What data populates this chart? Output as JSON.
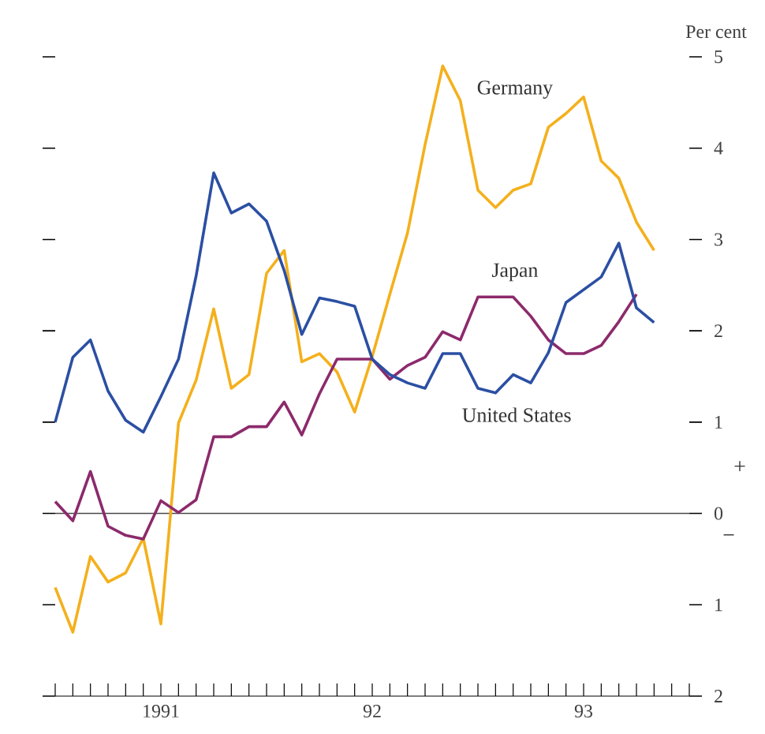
{
  "chart_data": {
    "type": "line",
    "ylabel": "Per cent",
    "x": [
      "1991-01",
      "1991-02",
      "1991-03",
      "1991-04",
      "1991-05",
      "1991-06",
      "1991-07",
      "1991-08",
      "1991-09",
      "1991-10",
      "1991-11",
      "1991-12",
      "1992-01",
      "1992-02",
      "1992-03",
      "1992-04",
      "1992-05",
      "1992-06",
      "1992-07",
      "1992-08",
      "1992-09",
      "1992-10",
      "1992-11",
      "1992-12",
      "1993-01",
      "1993-02",
      "1993-03",
      "1993-04",
      "1993-05",
      "1993-06",
      "1993-07",
      "1993-08",
      "1993-09",
      "1993-10",
      "1993-11"
    ],
    "series": [
      {
        "name": "Germany",
        "color": "#f4b01c",
        "values": [
          -0.81,
          -1.3,
          -0.47,
          -0.75,
          -0.65,
          -0.27,
          -1.21,
          0.99,
          1.46,
          2.24,
          1.37,
          1.52,
          2.63,
          2.88,
          1.66,
          1.75,
          1.55,
          1.11,
          1.72,
          2.4,
          3.07,
          4.04,
          4.9,
          4.52,
          3.54,
          3.35,
          3.54,
          3.61,
          4.23,
          4.38,
          4.56,
          3.86,
          3.67,
          3.19,
          2.88
        ]
      },
      {
        "name": "Japan",
        "color": "#8c2a6c",
        "values": [
          0.13,
          -0.08,
          0.46,
          -0.14,
          -0.24,
          -0.28,
          0.14,
          0.01,
          0.15,
          0.84,
          0.84,
          0.95,
          0.95,
          1.22,
          0.86,
          1.31,
          1.69,
          1.69,
          1.69,
          1.47,
          1.62,
          1.71,
          1.99,
          1.9,
          2.37,
          2.37,
          2.37,
          2.16,
          1.9,
          1.75,
          1.75,
          1.84,
          2.1,
          2.4,
          null
        ]
      },
      {
        "name": "United States",
        "color": "#2b4fa3",
        "values": [
          1.0,
          1.71,
          1.9,
          1.34,
          1.02,
          0.89,
          1.28,
          1.69,
          2.6,
          3.73,
          3.29,
          3.39,
          3.2,
          2.66,
          1.96,
          2.36,
          2.32,
          2.27,
          1.69,
          1.52,
          1.43,
          1.37,
          1.75,
          1.75,
          1.37,
          1.32,
          1.52,
          1.43,
          1.76,
          2.31,
          2.45,
          2.59,
          2.96,
          2.25,
          2.09
        ]
      }
    ],
    "xlim": [
      "1991-01",
      "1994-01"
    ],
    "xticks": [
      {
        "value": "1991-01",
        "label": null
      },
      {
        "value": "1991-02",
        "label": null
      },
      {
        "value": "1991-03",
        "label": null
      },
      {
        "value": "1991-04",
        "label": null
      },
      {
        "value": "1991-05",
        "label": null
      },
      {
        "value": "1991-06",
        "label": null
      },
      {
        "value": "1991-07",
        "label": "1991"
      },
      {
        "value": "1991-08",
        "label": null
      },
      {
        "value": "1991-09",
        "label": null
      },
      {
        "value": "1991-10",
        "label": null
      },
      {
        "value": "1991-11",
        "label": null
      },
      {
        "value": "1991-12",
        "label": null
      },
      {
        "value": "1992-01",
        "label": null
      },
      {
        "value": "1992-02",
        "label": null
      },
      {
        "value": "1992-03",
        "label": null
      },
      {
        "value": "1992-04",
        "label": null
      },
      {
        "value": "1992-05",
        "label": null
      },
      {
        "value": "1992-06",
        "label": null
      },
      {
        "value": "1992-07",
        "label": "92"
      },
      {
        "value": "1992-08",
        "label": null
      },
      {
        "value": "1992-09",
        "label": null
      },
      {
        "value": "1992-10",
        "label": null
      },
      {
        "value": "1992-11",
        "label": null
      },
      {
        "value": "1992-12",
        "label": null
      },
      {
        "value": "1993-01",
        "label": null
      },
      {
        "value": "1993-02",
        "label": null
      },
      {
        "value": "1993-03",
        "label": null
      },
      {
        "value": "1993-04",
        "label": null
      },
      {
        "value": "1993-05",
        "label": null
      },
      {
        "value": "1993-06",
        "label": null
      },
      {
        "value": "1993-07",
        "label": "93"
      },
      {
        "value": "1993-08",
        "label": null
      },
      {
        "value": "1993-09",
        "label": null
      },
      {
        "value": "1993-10",
        "label": null
      },
      {
        "value": "1993-11",
        "label": null
      },
      {
        "value": "1993-12",
        "label": null
      },
      {
        "value": "1994-01",
        "label": null
      }
    ],
    "ylim": [
      -2,
      5
    ],
    "yticks": [
      {
        "value": -2,
        "label": "2"
      },
      {
        "value": -1,
        "label": "1"
      },
      0,
      1,
      2,
      3,
      4,
      5
    ],
    "ref_lines": [
      {
        "axis": "y",
        "value": 0,
        "color": "#4a4a4a"
      }
    ],
    "annotations": [
      "+",
      "−"
    ],
    "grid": false,
    "legend": false,
    "marker": "none",
    "line_style": "solid"
  }
}
